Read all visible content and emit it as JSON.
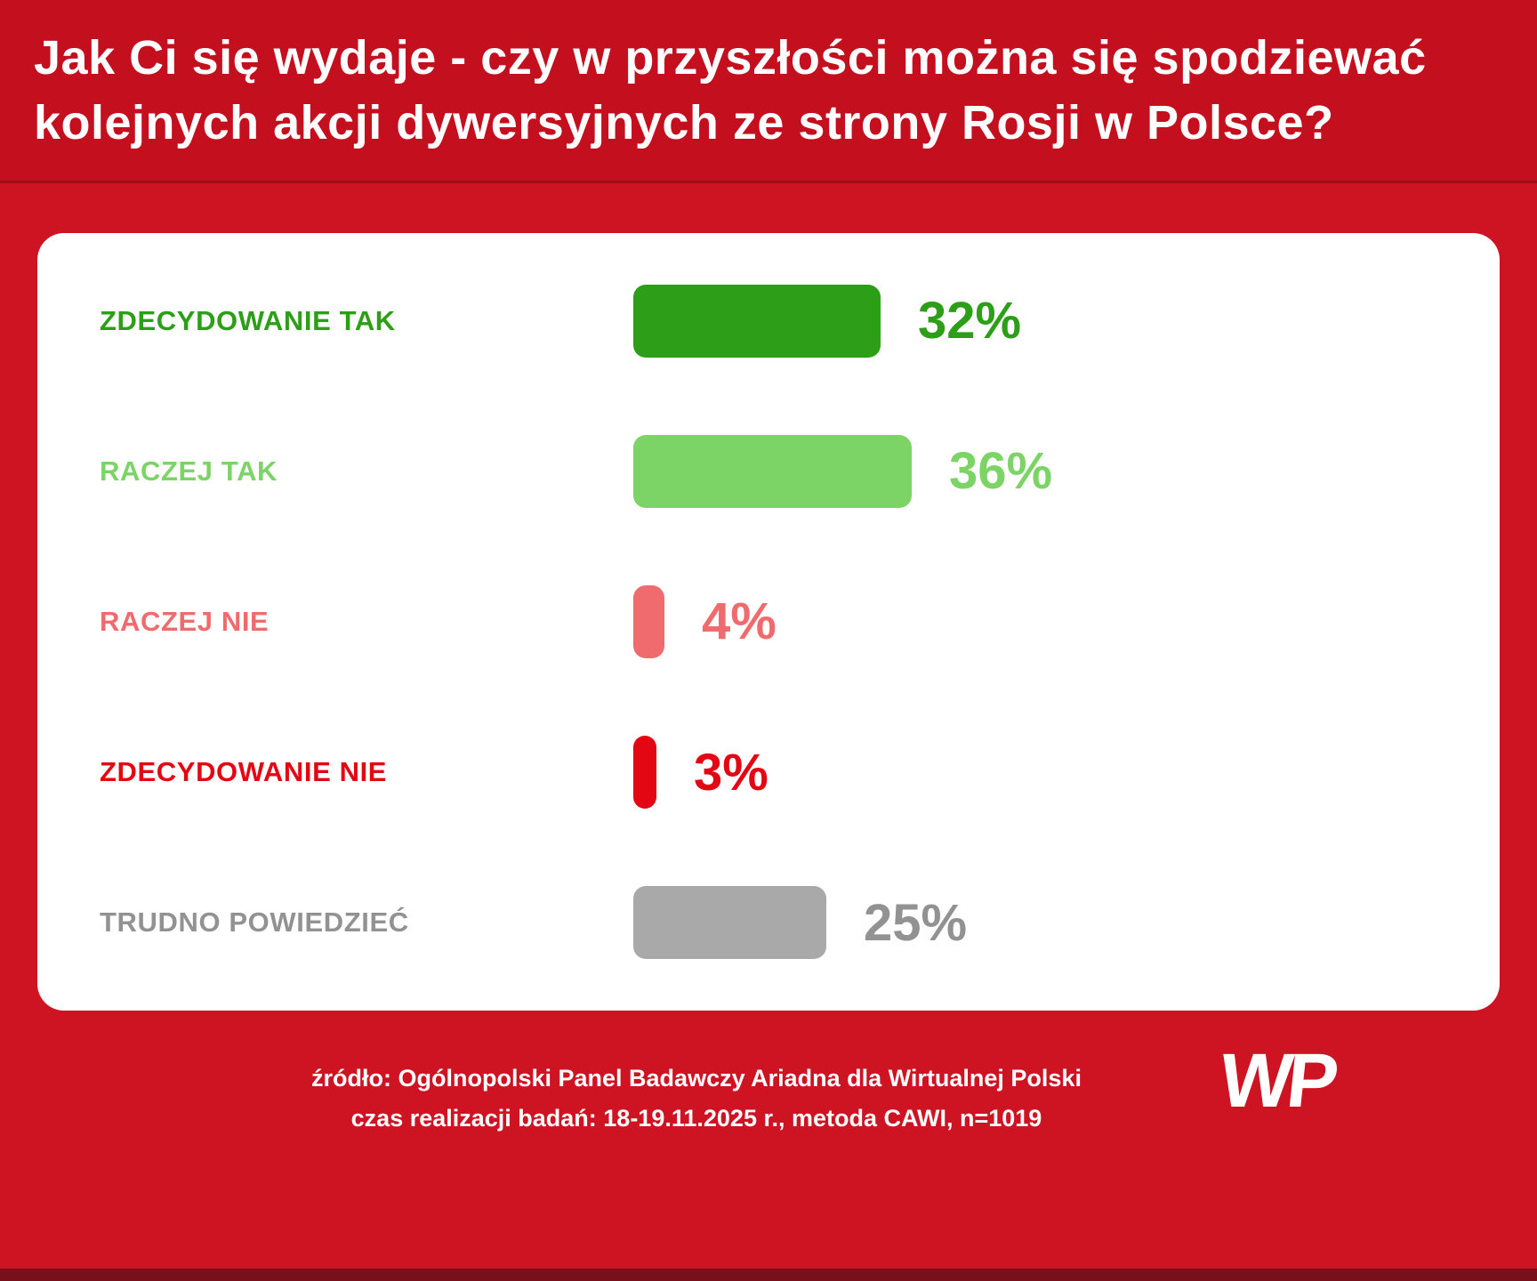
{
  "header": {
    "title_line1": "Jak Ci się wydaje - czy w przyszłości można się spodziewać",
    "title_line2": "kolejnych akcji dywersyjnych ze strony Rosji w Polsce?"
  },
  "chart_data": {
    "type": "bar",
    "orientation": "horizontal",
    "title": "Jak Ci się wydaje - czy w przyszłości można się spodziewać kolejnych akcji dywersyjnych ze strony Rosji w Polsce?",
    "categories": [
      "ZDECYDOWANIE TAK",
      "RACZEJ TAK",
      "RACZEJ NIE",
      "ZDECYDOWANIE NIE",
      "TRUDNO POWIEDZIEĆ"
    ],
    "values": [
      32,
      36,
      4,
      3,
      25
    ],
    "unit": "%",
    "xlim": [
      0,
      40
    ],
    "grid": false,
    "legend": "none",
    "rows": [
      {
        "label": "ZDECYDOWANIE TAK",
        "value": 32,
        "display": "32%",
        "color": "#2d9e17",
        "text_color": "#2d9e17"
      },
      {
        "label": "RACZEJ TAK",
        "value": 36,
        "display": "36%",
        "color": "#7dd466",
        "text_color": "#7dd466"
      },
      {
        "label": "RACZEJ NIE",
        "value": 4,
        "display": "4%",
        "color": "#ef6b6d",
        "text_color": "#ef6b6d"
      },
      {
        "label": "ZDECYDOWANIE NIE",
        "value": 3,
        "display": "3%",
        "color": "#e30713",
        "text_color": "#e30713"
      },
      {
        "label": "TRUDNO POWIEDZIEĆ",
        "value": 25,
        "display": "25%",
        "color": "#a9a9a9",
        "text_color": "#929292"
      }
    ]
  },
  "footer": {
    "source_line1": "źródło: Ogólnopolski Panel Badawczy Ariadna dla Wirtualnej Polski",
    "source_line2": "czas realizacji badań: 18-19.11.2025 r., metoda CAWI, n=1019",
    "logo_text": "WP"
  },
  "colors": {
    "background": "#ce1322",
    "header_background": "#c40f1f",
    "header_divider": "#9e0c19",
    "card_background": "#ffffff",
    "bottom_strip": "#77101b",
    "text_on_red": "#ffffff"
  }
}
